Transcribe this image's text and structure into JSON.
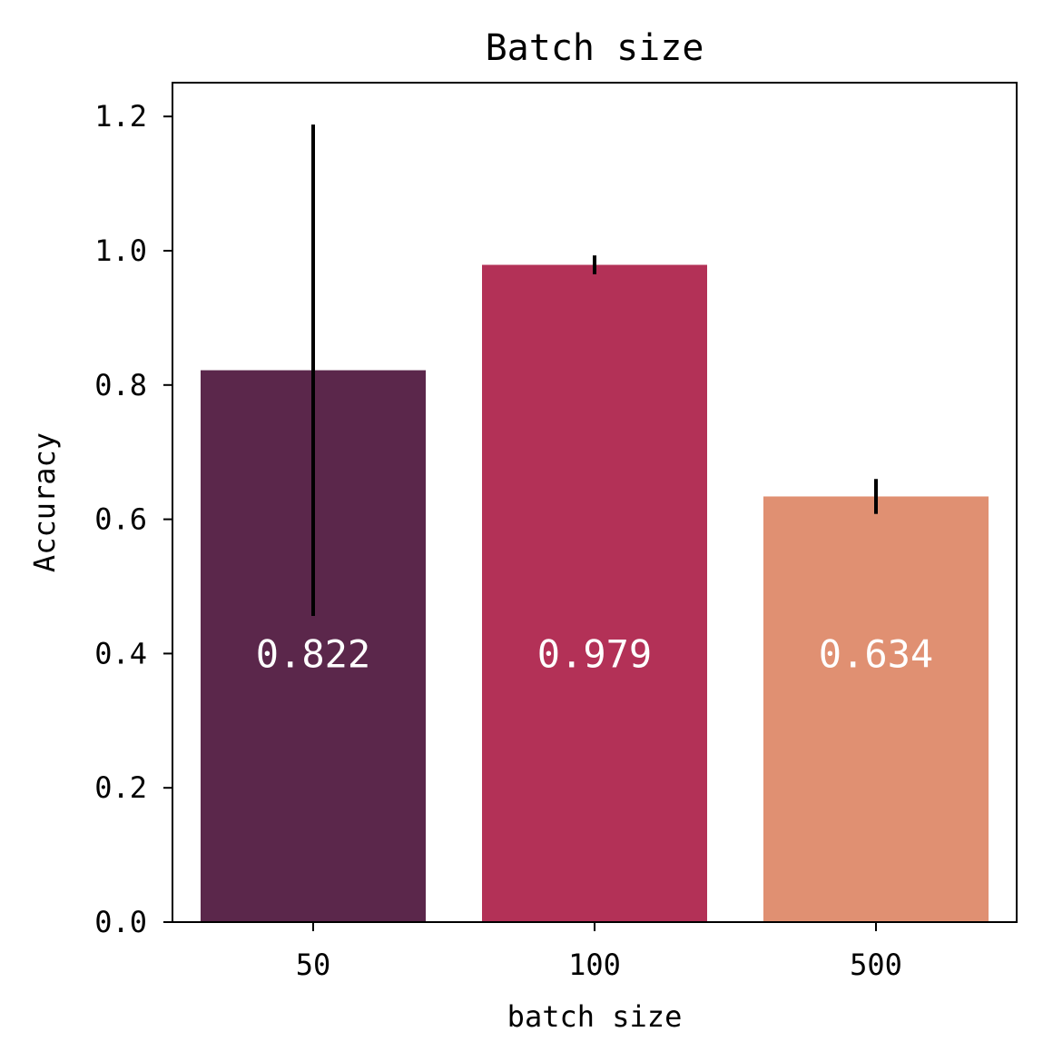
{
  "chart_data": {
    "type": "bar",
    "title": "Batch size",
    "xlabel": "batch size",
    "ylabel": "Accuracy",
    "categories": [
      "50",
      "100",
      "500"
    ],
    "values": [
      0.822,
      0.979,
      0.634
    ],
    "value_labels": [
      "0.822",
      "0.979",
      "0.634"
    ],
    "error_low": [
      0.456,
      0.965,
      0.608
    ],
    "error_high": [
      1.188,
      0.993,
      0.66
    ],
    "colors": [
      "#5b274b",
      "#b33157",
      "#e09072"
    ],
    "ylim": [
      0,
      1.25
    ],
    "yticks": [
      0.0,
      0.2,
      0.4,
      0.6,
      0.8,
      1.0,
      1.2
    ],
    "ytick_labels": [
      "0.0",
      "0.2",
      "0.4",
      "0.6",
      "0.8",
      "1.0",
      "1.2"
    ],
    "value_label_y": 0.4,
    "grid": false,
    "legend": "none"
  }
}
